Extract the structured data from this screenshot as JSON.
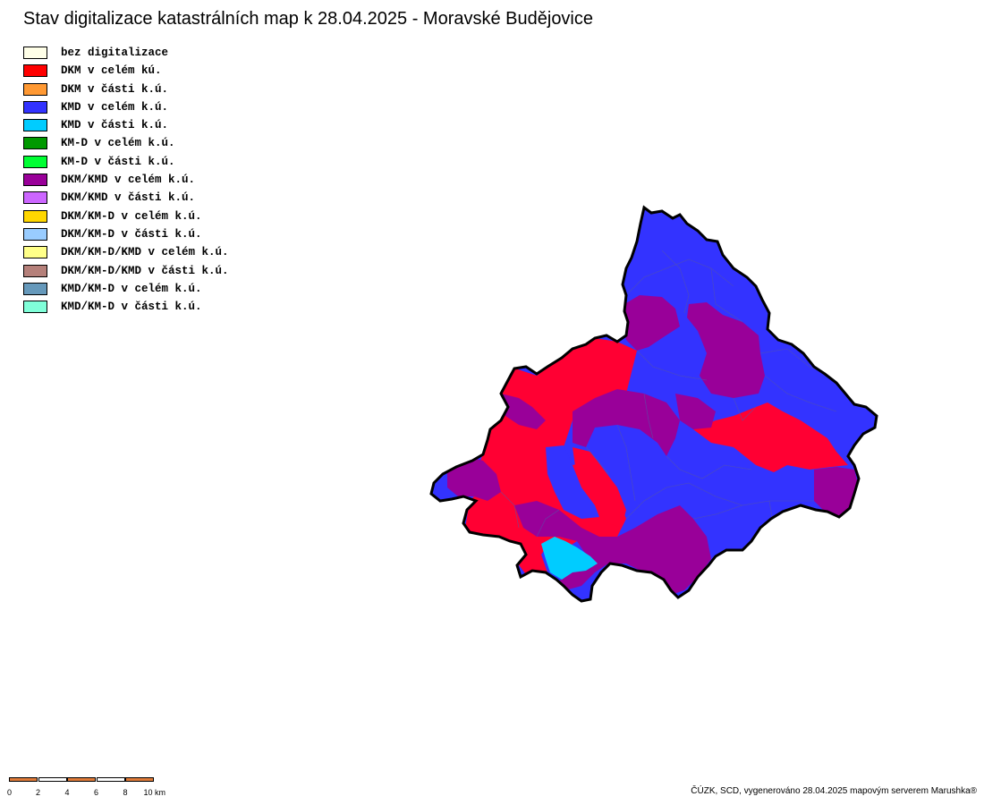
{
  "title": "Stav digitalizace katastrálních map k 28.04.2025 - Moravské Budějovice",
  "legend": [
    {
      "label": "bez digitalizace",
      "color": "#FFFFE8"
    },
    {
      "label": "DKM v celém kú.",
      "color": "#FF0000"
    },
    {
      "label": "DKM v části k.ú.",
      "color": "#FF9933"
    },
    {
      "label": "KMD v celém k.ú.",
      "color": "#3333FF"
    },
    {
      "label": "KMD v části k.ú.",
      "color": "#00CCFF"
    },
    {
      "label": "KM-D v celém k.ú.",
      "color": "#009900"
    },
    {
      "label": "KM-D v části k.ú.",
      "color": "#00FF33"
    },
    {
      "label": "DKM/KMD v celém k.ú.",
      "color": "#990099"
    },
    {
      "label": "DKM/KMD v části k.ú.",
      "color": "#CC66FF"
    },
    {
      "label": "DKM/KM-D v celém k.ú.",
      "color": "#FFD700"
    },
    {
      "label": "DKM/KM-D v části k.ú.",
      "color": "#99CCFF"
    },
    {
      "label": "DKM/KM-D/KMD v celém k.ú.",
      "color": "#FFFF88"
    },
    {
      "label": "DKM/KM-D/KMD v části k.ú.",
      "color": "#B5807A"
    },
    {
      "label": "KMD/KM-D v celém k.ú.",
      "color": "#6699BB"
    },
    {
      "label": "KMD/KM-D v části k.ú.",
      "color": "#80FFD9"
    }
  ],
  "scale": {
    "ticks": [
      "0",
      "2",
      "4",
      "6",
      "8",
      "10 km"
    ],
    "colors": [
      "#E07B39",
      "#FFFFFF"
    ]
  },
  "credits": "ČÚZK, SCD, vygenerováno 28.04.2025 mapovým serverem Marushka®",
  "map_colors": {
    "kmd": "#3333FF",
    "dkm": "#FF0033",
    "dkm_kmd": "#990099",
    "kmd_part": "#00CCFF",
    "boundary": "#000000",
    "inner_border": "#5555AA"
  }
}
